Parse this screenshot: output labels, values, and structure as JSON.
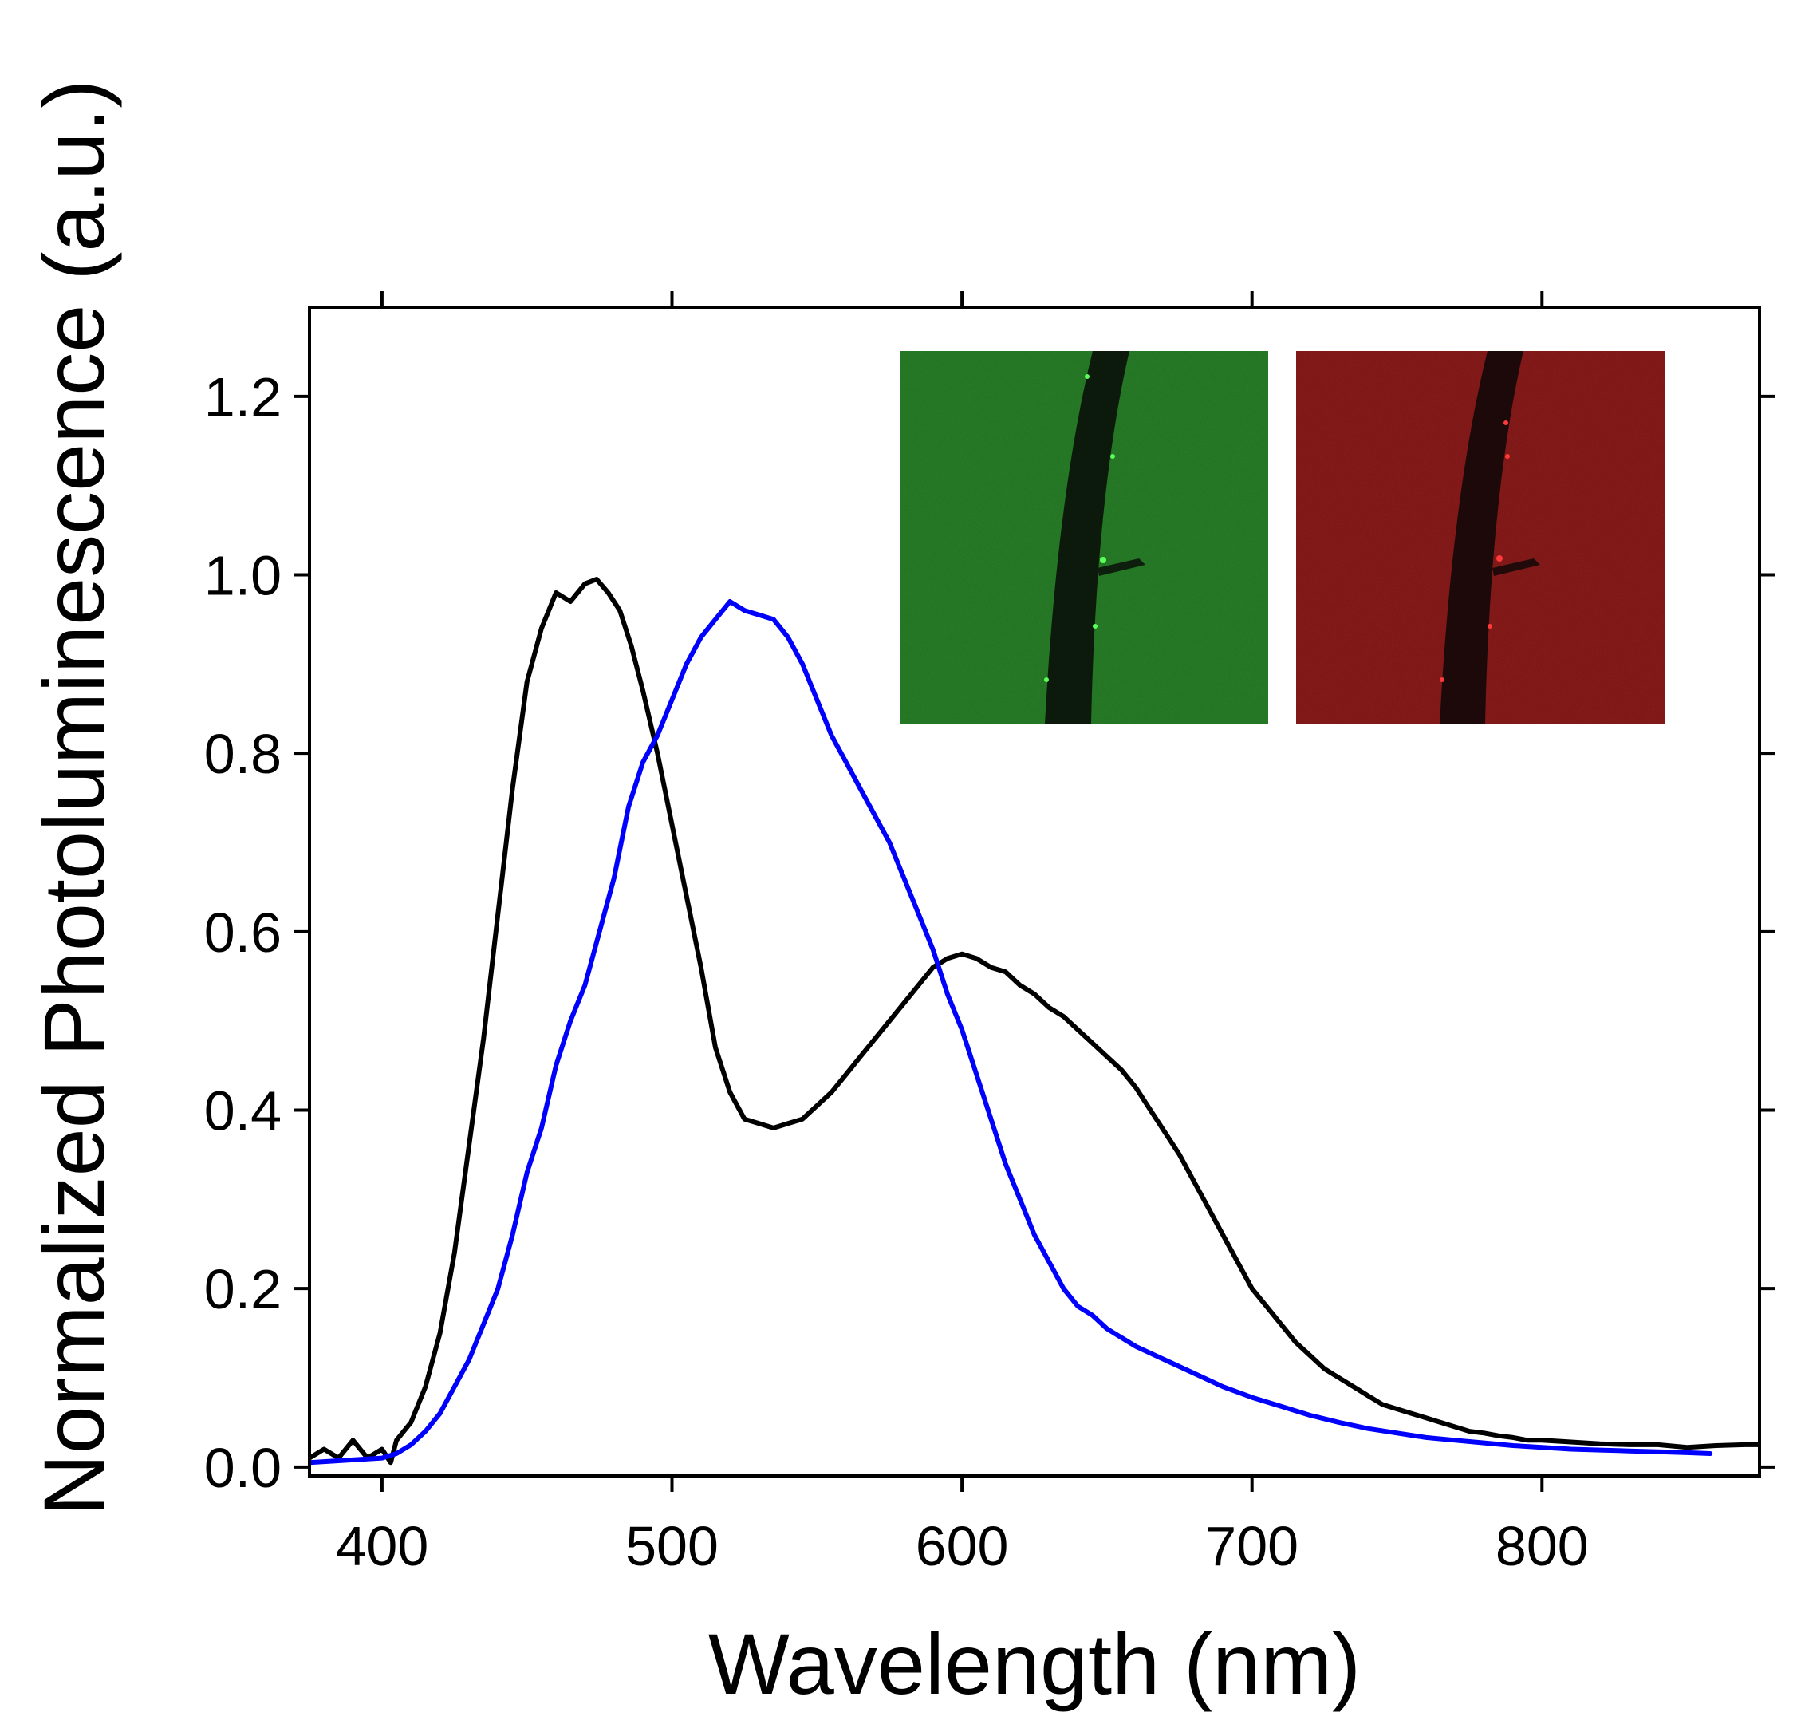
{
  "chart_data": {
    "type": "line",
    "title": "",
    "xlabel": "Wavelength (nm)",
    "ylabel": "Normalized Photoluminescence (a.u.)",
    "xlim": [
      375,
      875
    ],
    "ylim": [
      -0.01,
      1.3
    ],
    "xticks": [
      400,
      500,
      600,
      700,
      800
    ],
    "xtick_labels": [
      "400",
      "500",
      "600",
      "700",
      "800"
    ],
    "yticks": [
      0.0,
      0.2,
      0.4,
      0.6,
      0.8,
      1.0,
      1.2
    ],
    "ytick_labels": [
      "0.0",
      "0.2",
      "0.4",
      "0.6",
      "0.8",
      "1.0",
      "1.2"
    ],
    "grid": false,
    "legend": "none",
    "series": [
      {
        "color": "#000000",
        "x": [
          375,
          380,
          385,
          390,
          395,
          400,
          403,
          405,
          410,
          415,
          420,
          425,
          430,
          435,
          440,
          445,
          450,
          455,
          460,
          465,
          470,
          474,
          478,
          482,
          486,
          490,
          495,
          500,
          505,
          510,
          515,
          520,
          525,
          530,
          535,
          540,
          545,
          550,
          555,
          560,
          565,
          570,
          575,
          580,
          585,
          590,
          595,
          600,
          605,
          610,
          615,
          620,
          625,
          630,
          635,
          640,
          645,
          650,
          655,
          660,
          665,
          670,
          675,
          680,
          685,
          690,
          695,
          700,
          705,
          710,
          715,
          720,
          725,
          730,
          735,
          740,
          745,
          750,
          755,
          760,
          765,
          770,
          775,
          780,
          785,
          790,
          795,
          800,
          810,
          820,
          830,
          840,
          850,
          860,
          870,
          875
        ],
        "y": [
          0.01,
          0.02,
          0.01,
          0.03,
          0.01,
          0.02,
          0.005,
          0.03,
          0.05,
          0.09,
          0.15,
          0.24,
          0.36,
          0.48,
          0.62,
          0.76,
          0.88,
          0.94,
          0.98,
          0.97,
          0.99,
          0.995,
          0.98,
          0.96,
          0.92,
          0.87,
          0.8,
          0.72,
          0.64,
          0.56,
          0.47,
          0.42,
          0.39,
          0.385,
          0.38,
          0.385,
          0.39,
          0.405,
          0.42,
          0.44,
          0.46,
          0.48,
          0.5,
          0.52,
          0.54,
          0.56,
          0.57,
          0.575,
          0.57,
          0.56,
          0.555,
          0.54,
          0.53,
          0.515,
          0.505,
          0.49,
          0.475,
          0.46,
          0.445,
          0.425,
          0.4,
          0.375,
          0.35,
          0.32,
          0.29,
          0.26,
          0.23,
          0.2,
          0.18,
          0.16,
          0.14,
          0.125,
          0.11,
          0.1,
          0.09,
          0.08,
          0.07,
          0.065,
          0.06,
          0.055,
          0.05,
          0.045,
          0.04,
          0.038,
          0.035,
          0.033,
          0.03,
          0.03,
          0.028,
          0.026,
          0.025,
          0.025,
          0.022,
          0.024,
          0.025,
          0.025
        ]
      },
      {
        "color": "#0000ff",
        "x": [
          375,
          390,
          400,
          405,
          410,
          415,
          420,
          425,
          430,
          435,
          440,
          445,
          450,
          455,
          460,
          465,
          470,
          475,
          480,
          485,
          490,
          495,
          500,
          505,
          510,
          515,
          520,
          525,
          530,
          535,
          540,
          545,
          550,
          555,
          560,
          565,
          570,
          575,
          580,
          585,
          590,
          595,
          600,
          605,
          610,
          615,
          620,
          625,
          630,
          635,
          640,
          645,
          650,
          655,
          660,
          670,
          680,
          690,
          700,
          710,
          720,
          730,
          740,
          750,
          760,
          770,
          780,
          790,
          800,
          810,
          820,
          830,
          840,
          850,
          858
        ],
        "y": [
          0.005,
          0.008,
          0.01,
          0.015,
          0.025,
          0.04,
          0.06,
          0.09,
          0.12,
          0.16,
          0.2,
          0.26,
          0.33,
          0.38,
          0.45,
          0.5,
          0.54,
          0.6,
          0.66,
          0.74,
          0.79,
          0.82,
          0.86,
          0.9,
          0.93,
          0.95,
          0.97,
          0.96,
          0.955,
          0.95,
          0.93,
          0.9,
          0.86,
          0.82,
          0.79,
          0.76,
          0.73,
          0.7,
          0.66,
          0.62,
          0.58,
          0.53,
          0.49,
          0.44,
          0.39,
          0.34,
          0.3,
          0.26,
          0.23,
          0.2,
          0.18,
          0.17,
          0.155,
          0.145,
          0.135,
          0.12,
          0.105,
          0.09,
          0.078,
          0.068,
          0.058,
          0.05,
          0.043,
          0.038,
          0.033,
          0.03,
          0.027,
          0.024,
          0.022,
          0.02,
          0.019,
          0.018,
          0.017,
          0.016,
          0.015
        ]
      }
    ],
    "inset_images": [
      {
        "fill": "#1f6e1f",
        "description_color": "green"
      },
      {
        "fill": "#7a1212",
        "description_color": "red"
      }
    ]
  }
}
